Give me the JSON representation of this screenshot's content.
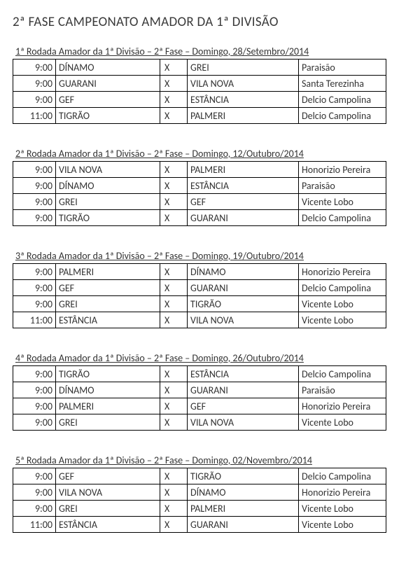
{
  "title": "2ª FASE CAMPEONATO AMADOR DA 1ª DIVISÃO",
  "vs_marker": "X",
  "rounds": [
    {
      "header": "1ª Rodada Amador da 1ª Divisão – 2ª Fase – Domingo, 28/Setembro/2014",
      "rows": [
        {
          "time": "9:00",
          "home": "DÍNAMO",
          "away": "GREI",
          "venue": "Paraisão"
        },
        {
          "time": "9:00",
          "home": "GUARANI",
          "away": "VILA NOVA",
          "venue": "Santa Terezinha"
        },
        {
          "time": "9:00",
          "home": "GEF",
          "away": "ESTÂNCIA",
          "venue": "Delcio Campolina"
        },
        {
          "time": "11:00",
          "home": "TIGRÃO",
          "away": "PALMERI",
          "venue": "Delcio Campolina"
        }
      ]
    },
    {
      "header": "2ª Rodada Amador da 1ª Divisão – 2ª Fase – Domingo, 12/Outubro/2014",
      "rows": [
        {
          "time": "9:00",
          "home": "VILA NOVA",
          "away": "PALMERI",
          "venue": "Honorizio Pereira"
        },
        {
          "time": "9:00",
          "home": "DÍNAMO",
          "away": "ESTÂNCIA",
          "venue": "Paraisão"
        },
        {
          "time": "9:00",
          "home": "GREI",
          "away": "GEF",
          "venue": "Vicente Lobo"
        },
        {
          "time": "9:00",
          "home": "TIGRÃO",
          "away": "GUARANI",
          "venue": "Delcio Campolina"
        }
      ]
    },
    {
      "header": "3ª Rodada Amador da 1ª Divisão – 2ª Fase – Domingo, 19/Outubro/2014",
      "rows": [
        {
          "time": "9:00",
          "home": "PALMERI",
          "away": "DÍNAMO",
          "venue": "Honorizio Pereira"
        },
        {
          "time": "9:00",
          "home": "GEF",
          "away": "GUARANI",
          "venue": "Delcio Campolina"
        },
        {
          "time": "9:00",
          "home": "GREI",
          "away": "TIGRÃO",
          "venue": "Vicente Lobo"
        },
        {
          "time": "11:00",
          "home": "ESTÂNCIA",
          "away": "VILA NOVA",
          "venue": "Vicente Lobo"
        }
      ]
    },
    {
      "header": "4ª Rodada Amador da 1ª Divisão – 2ª Fase – Domingo, 26/Outubro/2014",
      "rows": [
        {
          "time": "9:00",
          "home": "TIGRÃO",
          "away": "ESTÂNCIA",
          "venue": "Delcio Campolina"
        },
        {
          "time": "9:00",
          "home": "DÍNAMO",
          "away": "GUARANI",
          "venue": "Paraisão"
        },
        {
          "time": "9:00",
          "home": "PALMERI",
          "away": "GEF",
          "venue": "Honorizio Pereira"
        },
        {
          "time": "9:00",
          "home": "GREI",
          "away": "VILA NOVA",
          "venue": "Vicente Lobo"
        }
      ]
    },
    {
      "header": "5ª Rodada Amador da 1ª Divisão – 2ª Fase – Domingo, 02/Novembro/2014",
      "rows": [
        {
          "time": "9:00",
          "home": "GEF",
          "away": "TIGRÃO",
          "venue": "Delcio Campolina"
        },
        {
          "time": "9:00",
          "home": "VILA NOVA",
          "away": "DÍNAMO",
          "venue": "Honorizio Pereira"
        },
        {
          "time": "9:00",
          "home": "GREI",
          "away": "PALMERI",
          "venue": "Vicente Lobo"
        },
        {
          "time": "11:00",
          "home": "ESTÂNCIA",
          "away": "GUARANI",
          "venue": "Vicente Lobo"
        }
      ]
    }
  ]
}
